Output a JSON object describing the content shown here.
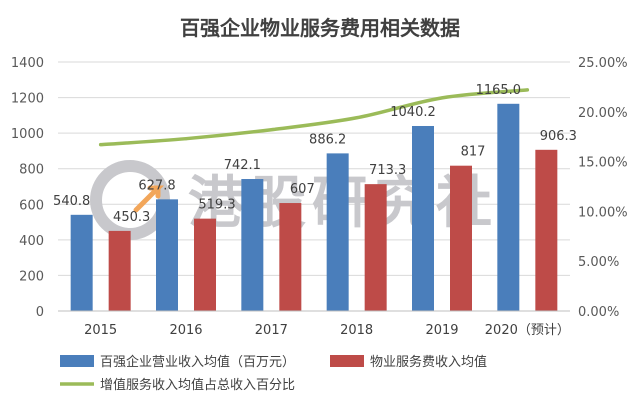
{
  "chart_data": {
    "type": "bar",
    "title": "百强企业物业服务费用相关数据",
    "categories": [
      "2015",
      "2016",
      "2017",
      "2018",
      "2019",
      "2020（预计）"
    ],
    "ylim": [
      0,
      1400
    ],
    "yticks": [
      "0",
      "200",
      "400",
      "600",
      "800",
      "1000",
      "1200",
      "1400"
    ],
    "y2lim": [
      0,
      25
    ],
    "y2ticks": [
      "0.00%",
      "5.00%",
      "10.00%",
      "15.00%",
      "20.00%",
      "25.00%"
    ],
    "grid": true,
    "legend_position": "bottom",
    "series": [
      {
        "name": "百强企业营业收入均值（百万元）",
        "type": "bar",
        "axis": "left",
        "color": "#4a7ebb",
        "values": [
          540.8,
          627.8,
          742.1,
          886.2,
          1040.2,
          1165.0
        ],
        "labels": [
          "540.8",
          "627.8",
          "742.1",
          "886.2",
          "1040.2",
          "1165.0"
        ]
      },
      {
        "name": "物业服务费收入均值",
        "type": "bar",
        "axis": "left",
        "color": "#be4b48",
        "values": [
          450.3,
          519.3,
          607,
          713.3,
          817,
          906.3
        ],
        "labels": [
          "450.3",
          "519.3",
          "607",
          "713.3",
          "817",
          "906.3"
        ]
      },
      {
        "name": "增值服务收入均值占总收入百分比",
        "type": "line",
        "axis": "right",
        "color": "#9bbb59",
        "values": [
          16.7,
          17.3,
          18.2,
          19.4,
          21.4,
          22.2
        ]
      }
    ]
  },
  "watermark": {
    "text": "港股研究社",
    "color": "#c8c8cc"
  }
}
